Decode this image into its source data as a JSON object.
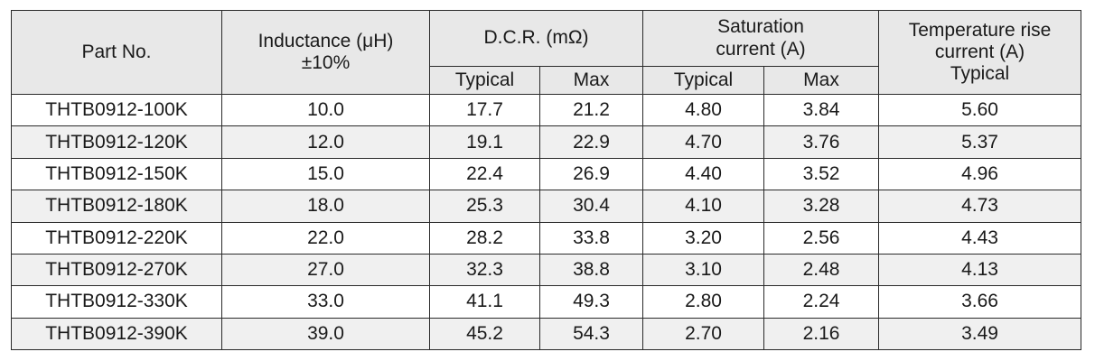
{
  "headers": {
    "part_no": "Part No.",
    "inductance_line1": "Inductance (μH)",
    "inductance_line2": "±10%",
    "dcr": "D.C.R. (mΩ)",
    "saturation_line1": "Saturation",
    "saturation_line2": "current (A)",
    "temp_line1": "Temperature rise",
    "temp_line2": "current (A)",
    "temp_line3": "Typical",
    "dcr_typical": "Typical",
    "dcr_max": "Max",
    "sat_typical": "Typical",
    "sat_max": "Max"
  },
  "rows": [
    {
      "part": "THTB0912-100K",
      "inductance": "10.0",
      "dcr_typ": "17.7",
      "dcr_max": "21.2",
      "sat_typ": "4.80",
      "sat_max": "3.84",
      "temp_typ": "5.60"
    },
    {
      "part": "THTB0912-120K",
      "inductance": "12.0",
      "dcr_typ": "19.1",
      "dcr_max": "22.9",
      "sat_typ": "4.70",
      "sat_max": "3.76",
      "temp_typ": "5.37"
    },
    {
      "part": "THTB0912-150K",
      "inductance": "15.0",
      "dcr_typ": "22.4",
      "dcr_max": "26.9",
      "sat_typ": "4.40",
      "sat_max": "3.52",
      "temp_typ": "4.96"
    },
    {
      "part": "THTB0912-180K",
      "inductance": "18.0",
      "dcr_typ": "25.3",
      "dcr_max": "30.4",
      "sat_typ": "4.10",
      "sat_max": "3.28",
      "temp_typ": "4.73"
    },
    {
      "part": "THTB0912-220K",
      "inductance": "22.0",
      "dcr_typ": "28.2",
      "dcr_max": "33.8",
      "sat_typ": "3.20",
      "sat_max": "2.56",
      "temp_typ": "4.43"
    },
    {
      "part": "THTB0912-270K",
      "inductance": "27.0",
      "dcr_typ": "32.3",
      "dcr_max": "38.8",
      "sat_typ": "3.10",
      "sat_max": "2.48",
      "temp_typ": "4.13"
    },
    {
      "part": "THTB0912-330K",
      "inductance": "33.0",
      "dcr_typ": "41.1",
      "dcr_max": "49.3",
      "sat_typ": "2.80",
      "sat_max": "2.24",
      "temp_typ": "3.66"
    },
    {
      "part": "THTB0912-390K",
      "inductance": "39.0",
      "dcr_typ": "45.2",
      "dcr_max": "54.3",
      "sat_typ": "2.70",
      "sat_max": "2.16",
      "temp_typ": "3.49"
    }
  ]
}
